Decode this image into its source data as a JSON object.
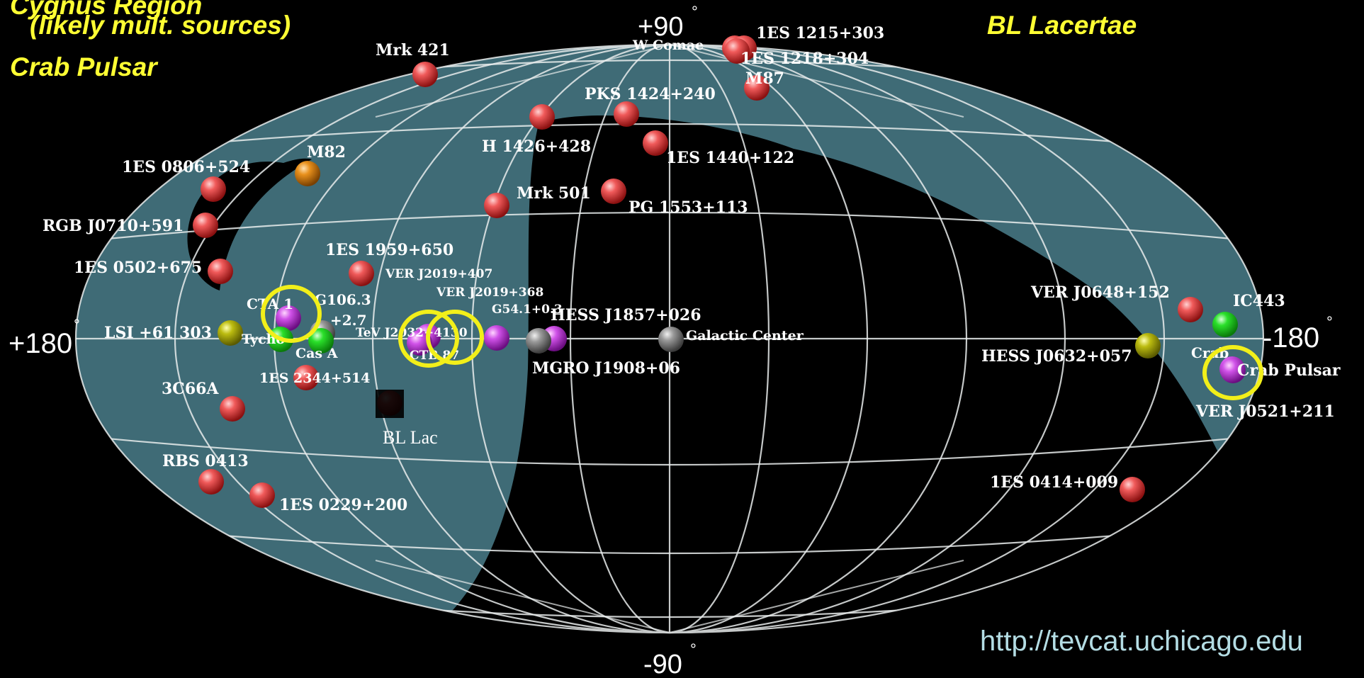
{
  "annotations": {
    "top_left_line1": "Cygnus Region",
    "top_left_line2": "(likely mult. sources)",
    "top_left_line3": "Crab Pulsar",
    "top_right": "BL Lacertae",
    "url": "http://tevcat.uchicago.edu",
    "bl_lac_label": "BL Lac"
  },
  "axes": {
    "top": "+90",
    "bottom": "-90",
    "left": "+180",
    "right": "-180"
  },
  "colors": {
    "background": "#000000",
    "sky_band": "#3f6b76",
    "grid": "#e8ecec",
    "extragalactic": "#e03a3a",
    "pulsar_wind": "#c03ad6",
    "snr": "#22d922",
    "binary": "#b8b800",
    "starburst": "#e08a1a",
    "unidentified": "#8c8c8c",
    "highlight_ring": "#f2ef1a",
    "annotation_text": "#ffff33"
  },
  "sources": [
    {
      "name": "Mrk 421",
      "type": "extragalactic"
    },
    {
      "name": "W Comae",
      "type": "extragalactic"
    },
    {
      "name": "1ES 1215+303",
      "type": "extragalactic"
    },
    {
      "name": "1ES 1218+304",
      "type": "extragalactic"
    },
    {
      "name": "M87",
      "type": "extragalactic"
    },
    {
      "name": "PKS 1424+240",
      "type": "extragalactic"
    },
    {
      "name": "H 1426+428",
      "type": "extragalactic"
    },
    {
      "name": "1ES 1440+122",
      "type": "extragalactic"
    },
    {
      "name": "Mrk 501",
      "type": "extragalactic"
    },
    {
      "name": "PG 1553+113",
      "type": "extragalactic"
    },
    {
      "name": "M82",
      "type": "starburst"
    },
    {
      "name": "1ES 0806+524",
      "type": "extragalactic"
    },
    {
      "name": "RGB J0710+591",
      "type": "extragalactic"
    },
    {
      "name": "1ES 0502+675",
      "type": "extragalactic"
    },
    {
      "name": "1ES 1959+650",
      "type": "extragalactic"
    },
    {
      "name": "CTA 1",
      "type": "pulsar_wind"
    },
    {
      "name": "G106.3",
      "type": "unidentified"
    },
    {
      "name": "+2.7",
      "type": "unidentified"
    },
    {
      "name": "LSI +61 303",
      "type": "binary"
    },
    {
      "name": "Tycho",
      "type": "snr"
    },
    {
      "name": "Cas A",
      "type": "snr"
    },
    {
      "name": "1ES 2344+514",
      "type": "extragalactic"
    },
    {
      "name": "3C66A",
      "type": "extragalactic"
    },
    {
      "name": "RBS 0413",
      "type": "extragalactic"
    },
    {
      "name": "1ES 0229+200",
      "type": "extragalactic"
    },
    {
      "name": "VER J2019+407",
      "type": "unidentified"
    },
    {
      "name": "VER J2019+368",
      "type": "pulsar_wind"
    },
    {
      "name": "TeV J2032+4130",
      "type": "unidentified"
    },
    {
      "name": "CTB 87",
      "type": "pulsar_wind"
    },
    {
      "name": "G54.1+0.3",
      "type": "pulsar_wind"
    },
    {
      "name": "HESS J1857+026",
      "type": "pulsar_wind"
    },
    {
      "name": "MGRO J1908+06",
      "type": "unidentified"
    },
    {
      "name": "Galactic Center",
      "type": "unidentified"
    },
    {
      "name": "BL Lac",
      "type": "extragalactic"
    },
    {
      "name": "VER J0648+152",
      "type": "extragalactic"
    },
    {
      "name": "IC443",
      "type": "snr"
    },
    {
      "name": "HESS J0632+057",
      "type": "binary"
    },
    {
      "name": "Crab",
      "type": "pulsar_wind"
    },
    {
      "name": "Crab Pulsar",
      "type": "pulsar_wind"
    },
    {
      "name": "VER J0521+211",
      "type": "extragalactic"
    },
    {
      "name": "1ES 0414+009",
      "type": "extragalactic"
    }
  ]
}
